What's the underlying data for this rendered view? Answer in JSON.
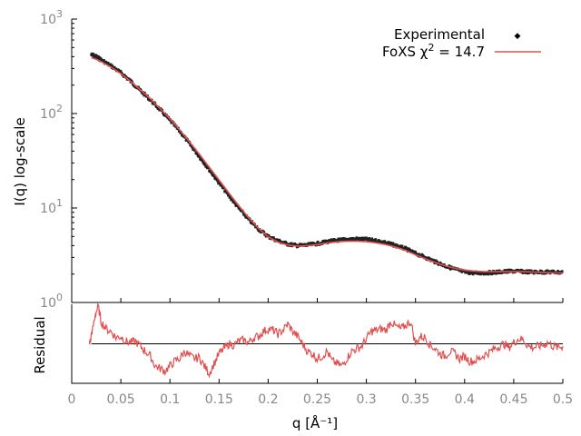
{
  "chart_data": [
    {
      "type": "scatter",
      "panel": "main",
      "xlabel": "q [Å⁻¹]",
      "ylabel": "I(q) log-scale",
      "xlim": [
        0,
        0.5
      ],
      "ylim": [
        1,
        1000
      ],
      "y_scale": "log",
      "x_ticks": [
        "0",
        "0.05",
        "0.1",
        "0.15",
        "0.2",
        "0.25",
        "0.3",
        "0.35",
        "0.4",
        "0.45",
        "0.5"
      ],
      "y_ticks": [
        {
          "base": "10",
          "exp": "0"
        },
        {
          "base": "10",
          "exp": "1"
        },
        {
          "base": "10",
          "exp": "2"
        },
        {
          "base": "10",
          "exp": "3"
        }
      ],
      "legend": {
        "placement": "top-right",
        "entries": [
          {
            "label": "Experimental"
          },
          {
            "prefix": "FoXS χ",
            "exp": "2",
            "suffix": " = 14.7"
          }
        ]
      },
      "series": [
        {
          "name": "Experimental",
          "color": "#222222",
          "x": [
            0.02,
            0.025,
            0.03,
            0.04,
            0.05,
            0.06,
            0.07,
            0.08,
            0.09,
            0.1,
            0.11,
            0.12,
            0.13,
            0.14,
            0.15,
            0.16,
            0.17,
            0.18,
            0.19,
            0.2,
            0.21,
            0.22,
            0.23,
            0.24,
            0.25,
            0.26,
            0.27,
            0.28,
            0.29,
            0.3,
            0.31,
            0.32,
            0.33,
            0.34,
            0.35,
            0.36,
            0.37,
            0.38,
            0.39,
            0.4,
            0.41,
            0.42,
            0.43,
            0.44,
            0.45,
            0.46,
            0.47,
            0.48,
            0.49,
            0.5
          ],
          "y": [
            420,
            400,
            370,
            320,
            270,
            220,
            175,
            140,
            110,
            85,
            65,
            48,
            35,
            25.5,
            18.5,
            13.5,
            10,
            7.6,
            6.0,
            5.0,
            4.5,
            4.15,
            4.0,
            4.05,
            4.2,
            4.4,
            4.55,
            4.65,
            4.7,
            4.65,
            4.5,
            4.3,
            4.0,
            3.7,
            3.3,
            3.0,
            2.7,
            2.45,
            2.25,
            2.1,
            2.05,
            2.05,
            2.08,
            2.12,
            2.15,
            2.12,
            2.1,
            2.1,
            2.1,
            2.08
          ]
        },
        {
          "name": "FoXS",
          "color": "#e05050",
          "x": [
            0.02,
            0.025,
            0.03,
            0.04,
            0.05,
            0.06,
            0.07,
            0.08,
            0.09,
            0.1,
            0.11,
            0.12,
            0.13,
            0.14,
            0.15,
            0.16,
            0.17,
            0.18,
            0.19,
            0.2,
            0.21,
            0.22,
            0.23,
            0.24,
            0.25,
            0.26,
            0.27,
            0.28,
            0.29,
            0.3,
            0.31,
            0.32,
            0.33,
            0.34,
            0.35,
            0.36,
            0.37,
            0.38,
            0.39,
            0.4,
            0.41,
            0.42,
            0.43,
            0.44,
            0.45,
            0.46,
            0.47,
            0.48,
            0.49,
            0.5
          ],
          "y": [
            390,
            375,
            355,
            310,
            265,
            218,
            178,
            143,
            113,
            88,
            67,
            50,
            37,
            27,
            19.8,
            14.4,
            10.6,
            7.9,
            6.1,
            4.95,
            4.35,
            4.05,
            3.95,
            4.0,
            4.1,
            4.25,
            4.38,
            4.45,
            4.45,
            4.4,
            4.28,
            4.1,
            3.85,
            3.55,
            3.2,
            2.9,
            2.65,
            2.45,
            2.3,
            2.2,
            2.15,
            2.12,
            2.12,
            2.12,
            2.12,
            2.12,
            2.1,
            2.08,
            2.06,
            2.05
          ]
        }
      ]
    },
    {
      "type": "line",
      "panel": "residual",
      "ylabel": "Residual",
      "xlabel": "q [Å⁻¹]",
      "xlim": [
        0,
        0.5
      ],
      "ylim": [
        -1.6,
        1.6
      ],
      "series": [
        {
          "name": "Residual",
          "color": "#e05050",
          "x": [
            0.018,
            0.02,
            0.024,
            0.027,
            0.03,
            0.035,
            0.04,
            0.045,
            0.05,
            0.055,
            0.06,
            0.065,
            0.07,
            0.075,
            0.08,
            0.085,
            0.09,
            0.095,
            0.1,
            0.105,
            0.11,
            0.115,
            0.12,
            0.125,
            0.13,
            0.135,
            0.14,
            0.145,
            0.15,
            0.155,
            0.16,
            0.165,
            0.17,
            0.175,
            0.18,
            0.185,
            0.19,
            0.195,
            0.2,
            0.205,
            0.21,
            0.215,
            0.22,
            0.225,
            0.23,
            0.235,
            0.24,
            0.245,
            0.25,
            0.255,
            0.26,
            0.265,
            0.27,
            0.275,
            0.28,
            0.285,
            0.29,
            0.295,
            0.3,
            0.305,
            0.31,
            0.315,
            0.32,
            0.325,
            0.33,
            0.335,
            0.34,
            0.345,
            0.35,
            0.355,
            0.36,
            0.365,
            0.37,
            0.375,
            0.38,
            0.385,
            0.39,
            0.395,
            0.4,
            0.405,
            0.41,
            0.415,
            0.42,
            0.425,
            0.43,
            0.435,
            0.44,
            0.445,
            0.45,
            0.455,
            0.46,
            0.465,
            0.47,
            0.475,
            0.48,
            0.485,
            0.49,
            0.495,
            0.5
          ],
          "y": [
            0.0,
            0.3,
            1.2,
            1.5,
            0.9,
            0.6,
            0.5,
            0.25,
            0.3,
            0.1,
            0.05,
            0.1,
            -0.1,
            -0.3,
            -0.5,
            -0.9,
            -1.0,
            -1.1,
            -0.9,
            -0.7,
            -0.6,
            -0.3,
            -0.5,
            -0.6,
            -0.55,
            -0.9,
            -1.2,
            -0.8,
            -0.4,
            -0.2,
            0.0,
            -0.05,
            0.1,
            0.15,
            0.05,
            0.25,
            0.3,
            0.5,
            0.6,
            0.55,
            0.4,
            0.55,
            0.8,
            0.5,
            0.3,
            0.0,
            -0.3,
            -0.4,
            -0.6,
            -0.5,
            -0.3,
            -0.7,
            -0.8,
            -0.9,
            -0.6,
            -0.3,
            -0.2,
            -0.1,
            0.2,
            0.5,
            0.55,
            0.6,
            0.55,
            0.9,
            0.7,
            0.6,
            0.75,
            0.9,
            0.0,
            0.3,
            0.25,
            -0.05,
            -0.2,
            -0.4,
            -0.5,
            -0.3,
            -0.4,
            -0.6,
            -0.5,
            -0.7,
            -0.7,
            -0.6,
            -0.45,
            -0.35,
            -0.2,
            -0.1,
            0.0,
            -0.15,
            0.05,
            0.2,
            0.15,
            -0.1,
            -0.15,
            -0.1,
            -0.05,
            0.05,
            -0.1,
            -0.15,
            -0.1
          ]
        },
        {
          "name": "Zero line",
          "color": "#000000",
          "x": [
            0.02,
            0.5
          ],
          "y": [
            0,
            0
          ]
        }
      ]
    }
  ]
}
